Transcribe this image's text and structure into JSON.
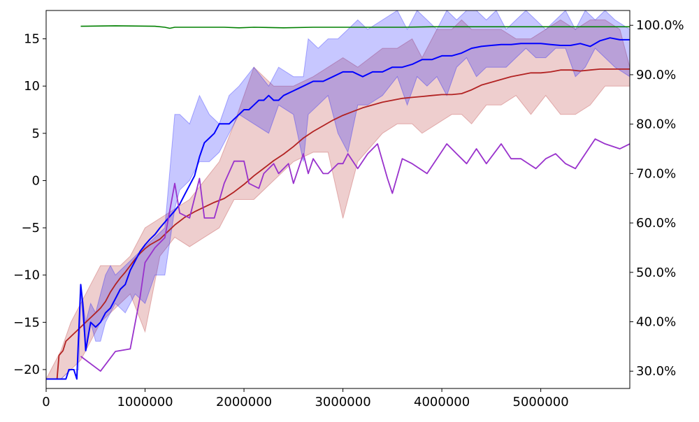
{
  "chart_data": {
    "type": "line",
    "title": "",
    "xlabel": "",
    "ylabel": "",
    "xlim": [
      0,
      5900000
    ],
    "ylim": [
      -22,
      18
    ],
    "y2lim": [
      0.265,
      1.03
    ],
    "grid": false,
    "x_ticks": [
      0,
      1000000,
      2000000,
      3000000,
      4000000,
      5000000
    ],
    "x_tick_labels": [
      "0",
      "1000000",
      "2000000",
      "3000000",
      "4000000",
      "5000000"
    ],
    "y_ticks": [
      -20,
      -15,
      -10,
      -5,
      0,
      5,
      10,
      15
    ],
    "y_tick_labels": [
      "−20",
      "−15",
      "−10",
      "−5",
      "0",
      "5",
      "10",
      "15"
    ],
    "y2_ticks": [
      0.3,
      0.4,
      0.5,
      0.6,
      0.7,
      0.8,
      0.9,
      1.0
    ],
    "y2_tick_labels": [
      "30.0%",
      "40.0%",
      "50.0%",
      "60.0%",
      "70.0%",
      "80.0%",
      "90.0%",
      "100.0%"
    ],
    "bands": [
      {
        "color": "#b22222",
        "opacity": 0.22,
        "x": [
          0,
          150000,
          250000,
          350000,
          450000,
          550000,
          650000,
          750000,
          850000,
          1000000,
          1150000,
          1300000,
          1450000,
          1600000,
          1750000,
          1900000,
          2100000,
          2300000,
          2500000,
          2700000,
          2850000,
          3000000,
          3150000,
          3400000,
          3550000,
          3700000,
          3800000,
          3950000,
          4100000,
          4200000,
          4300000,
          4450000,
          4600000,
          4750000,
          4900000,
          5050000,
          5200000,
          5350000,
          5500000,
          5650000,
          5800000,
          5900000
        ],
        "lower": [
          -21,
          -21,
          -20,
          -19,
          -17,
          -15,
          -14,
          -13,
          -12,
          -16,
          -8,
          -6,
          -7,
          -6,
          -5,
          -2,
          -2,
          0,
          2,
          3,
          3,
          -4,
          2,
          5,
          6,
          6,
          5,
          6,
          7,
          7,
          6,
          8,
          8,
          9,
          7,
          9,
          7,
          7,
          8,
          10,
          10,
          10
        ],
        "upper": [
          -21,
          -18,
          -15,
          -13,
          -11,
          -9,
          -9,
          -9,
          -8,
          -5,
          -4,
          -3,
          -2,
          0,
          2,
          6,
          12,
          10,
          10,
          11,
          12,
          13,
          12,
          14,
          14,
          15,
          13,
          16,
          16,
          17,
          16,
          16,
          16,
          15,
          15,
          16,
          17,
          16,
          17,
          17,
          16,
          12
        ]
      },
      {
        "color": "#0000ff",
        "opacity": 0.22,
        "x": [
          0,
          150000,
          250000,
          330000,
          350000,
          400000,
          450000,
          500000,
          550000,
          600000,
          650000,
          700000,
          800000,
          900000,
          1000000,
          1100000,
          1200000,
          1300000,
          1350000,
          1450000,
          1550000,
          1650000,
          1750000,
          1850000,
          1950000,
          2100000,
          2250000,
          2350000,
          2500000,
          2600000,
          2650000,
          2750000,
          2850000,
          2950000,
          3050000,
          3150000,
          3250000,
          3400000,
          3550000,
          3650000,
          3750000,
          3850000,
          3950000,
          4050000,
          4150000,
          4250000,
          4350000,
          4450000,
          4550000,
          4650000,
          4750000,
          4850000,
          4950000,
          5050000,
          5150000,
          5250000,
          5350000,
          5450000,
          5550000,
          5650000,
          5750000,
          5900000
        ],
        "lower": [
          -21,
          -21,
          -20,
          -20,
          -12,
          -18,
          -15,
          -17,
          -17,
          -15,
          -14,
          -13,
          -14,
          -12,
          -13,
          -10,
          -10,
          -3,
          -1,
          0,
          2,
          2,
          3,
          5,
          7,
          6,
          5,
          8,
          7,
          2,
          7,
          8,
          9,
          5,
          3,
          8,
          8,
          9,
          11,
          8,
          11,
          10,
          11,
          9,
          12,
          13,
          11,
          12,
          12,
          12,
          13,
          14,
          13,
          13,
          14,
          14,
          11,
          12,
          14,
          13,
          12,
          11
        ],
        "upper": [
          -21,
          -21,
          -20,
          -20,
          -11,
          -15,
          -13,
          -14,
          -12,
          -10,
          -9,
          -10,
          -9,
          -8,
          -7,
          -6,
          -5,
          7,
          7,
          6,
          9,
          7,
          6,
          9,
          10,
          12,
          10,
          12,
          11,
          11,
          15,
          14,
          15,
          15,
          16,
          17,
          16,
          17,
          18,
          16,
          18,
          17,
          16,
          18,
          17,
          18,
          18,
          17,
          18,
          16,
          17,
          18,
          17,
          16,
          17,
          18,
          16,
          18,
          17,
          18,
          17,
          16
        ]
      }
    ],
    "series": [
      {
        "color": "#008000",
        "axis": "right",
        "width": 1.6,
        "x": [
          350000,
          700000,
          1100000,
          1200000,
          1250000,
          1300000,
          1500000,
          1800000,
          1950000,
          2100000,
          2400000,
          2700000,
          3000000,
          3300000,
          3600000,
          3900000,
          4200000,
          4500000,
          4800000,
          5100000,
          5400000,
          5700000,
          5900000
        ],
        "values": [
          0.998,
          0.999,
          0.998,
          0.996,
          0.994,
          0.996,
          0.996,
          0.996,
          0.995,
          0.996,
          0.995,
          0.996,
          0.996,
          0.996,
          0.996,
          0.997,
          0.997,
          0.997,
          0.997,
          0.997,
          0.997,
          0.997,
          0.997
        ]
      },
      {
        "color": "#b22222",
        "axis": "left",
        "width": 1.8,
        "x": [
          0,
          110000,
          130000,
          170000,
          200000,
          250000,
          300000,
          350000,
          400000,
          450000,
          500000,
          550000,
          600000,
          650000,
          700000,
          750000,
          800000,
          850000,
          900000,
          950000,
          1000000,
          1050000,
          1100000,
          1150000,
          1200000,
          1250000,
          1300000,
          1400000,
          1500000,
          1600000,
          1700000,
          1800000,
          1900000,
          2000000,
          2100000,
          2200000,
          2300000,
          2400000,
          2500000,
          2600000,
          2700000,
          2800000,
          2900000,
          3000000,
          3100000,
          3200000,
          3300000,
          3400000,
          3500000,
          3600000,
          3700000,
          3800000,
          3900000,
          4000000,
          4100000,
          4200000,
          4300000,
          4400000,
          4500000,
          4600000,
          4700000,
          4800000,
          4900000,
          5000000,
          5100000,
          5200000,
          5300000,
          5400000,
          5500000,
          5600000,
          5700000,
          5800000,
          5900000
        ],
        "values": [
          -21,
          -21,
          -18.5,
          -18,
          -17,
          -16.5,
          -16,
          -15.5,
          -15,
          -14.5,
          -14,
          -13.5,
          -12.8,
          -11.8,
          -11,
          -10.3,
          -9.7,
          -9,
          -8.3,
          -7.7,
          -7.2,
          -6.8,
          -6.5,
          -6.2,
          -5.7,
          -5.2,
          -4.7,
          -3.9,
          -3.3,
          -2.8,
          -2.3,
          -1.9,
          -1.2,
          -0.4,
          0.5,
          1.3,
          2.1,
          2.8,
          3.6,
          4.5,
          5.2,
          5.8,
          6.4,
          6.9,
          7.3,
          7.7,
          8.0,
          8.3,
          8.5,
          8.7,
          8.8,
          8.9,
          9.0,
          9.1,
          9.1,
          9.2,
          9.6,
          10.1,
          10.4,
          10.7,
          11.0,
          11.2,
          11.4,
          11.4,
          11.5,
          11.7,
          11.7,
          11.6,
          11.7,
          11.8,
          11.8,
          11.8,
          11.8
        ]
      },
      {
        "color": "#0000ff",
        "axis": "left",
        "width": 2,
        "x": [
          0,
          200000,
          230000,
          280000,
          310000,
          330000,
          350000,
          370000,
          400000,
          450000,
          500000,
          550000,
          600000,
          650000,
          700000,
          750000,
          800000,
          850000,
          900000,
          950000,
          1000000,
          1050000,
          1100000,
          1150000,
          1200000,
          1250000,
          1300000,
          1350000,
          1400000,
          1450000,
          1500000,
          1550000,
          1600000,
          1650000,
          1700000,
          1750000,
          1800000,
          1850000,
          1900000,
          1950000,
          2000000,
          2050000,
          2100000,
          2150000,
          2200000,
          2250000,
          2300000,
          2350000,
          2400000,
          2500000,
          2600000,
          2700000,
          2800000,
          2900000,
          3000000,
          3100000,
          3200000,
          3300000,
          3400000,
          3500000,
          3600000,
          3700000,
          3800000,
          3900000,
          4000000,
          4100000,
          4200000,
          4300000,
          4400000,
          4500000,
          4600000,
          4700000,
          4800000,
          4900000,
          5000000,
          5100000,
          5200000,
          5300000,
          5400000,
          5500000,
          5600000,
          5700000,
          5800000,
          5900000
        ],
        "values": [
          -21,
          -21,
          -20,
          -20,
          -21,
          -16,
          -11,
          -13,
          -18,
          -15,
          -15.5,
          -15,
          -14,
          -13.5,
          -12.5,
          -11.5,
          -11,
          -9.5,
          -8.5,
          -7.5,
          -6.8,
          -6.2,
          -5.7,
          -5,
          -4.4,
          -3.8,
          -3.2,
          -2.5,
          -1.5,
          -0.5,
          0.5,
          2.5,
          4,
          4.5,
          5,
          6,
          6,
          6,
          6.5,
          7,
          7.5,
          7.5,
          8,
          8.5,
          8.5,
          9,
          8.5,
          8.5,
          9,
          9.5,
          10,
          10.5,
          10.5,
          11,
          11.5,
          11.5,
          11,
          11.5,
          11.5,
          12,
          12,
          12.3,
          12.8,
          12.8,
          13.2,
          13.2,
          13.5,
          14,
          14.2,
          14.3,
          14.4,
          14.4,
          14.5,
          14.5,
          14.5,
          14.4,
          14.3,
          14.3,
          14.5,
          14.2,
          14.8,
          15.1,
          14.9,
          14.9
        ]
      },
      {
        "color": "#9932cc",
        "axis": "right",
        "width": 1.8,
        "x": [
          350000,
          550000,
          700000,
          850000,
          950000,
          1000000,
          1100000,
          1200000,
          1300000,
          1350000,
          1450000,
          1550000,
          1600000,
          1700000,
          1800000,
          1900000,
          2000000,
          2050000,
          2150000,
          2200000,
          2300000,
          2350000,
          2450000,
          2500000,
          2600000,
          2650000,
          2700000,
          2800000,
          2850000,
          2950000,
          3000000,
          3050000,
          3150000,
          3250000,
          3350000,
          3450000,
          3500000,
          3600000,
          3700000,
          3850000,
          3950000,
          4050000,
          4150000,
          4250000,
          4350000,
          4450000,
          4600000,
          4700000,
          4800000,
          4950000,
          5050000,
          5150000,
          5250000,
          5350000,
          5450000,
          5550000,
          5650000,
          5800000,
          5900000
        ],
        "values": [
          0.33,
          0.3,
          0.34,
          0.345,
          0.45,
          0.52,
          0.55,
          0.57,
          0.68,
          0.62,
          0.61,
          0.69,
          0.61,
          0.61,
          0.68,
          0.725,
          0.725,
          0.68,
          0.67,
          0.7,
          0.72,
          0.7,
          0.72,
          0.68,
          0.74,
          0.7,
          0.73,
          0.7,
          0.7,
          0.72,
          0.72,
          0.74,
          0.71,
          0.74,
          0.76,
          0.69,
          0.66,
          0.73,
          0.72,
          0.7,
          0.73,
          0.76,
          0.74,
          0.72,
          0.75,
          0.72,
          0.76,
          0.73,
          0.73,
          0.71,
          0.73,
          0.74,
          0.72,
          0.71,
          0.74,
          0.77,
          0.76,
          0.75,
          0.76
        ]
      }
    ]
  }
}
